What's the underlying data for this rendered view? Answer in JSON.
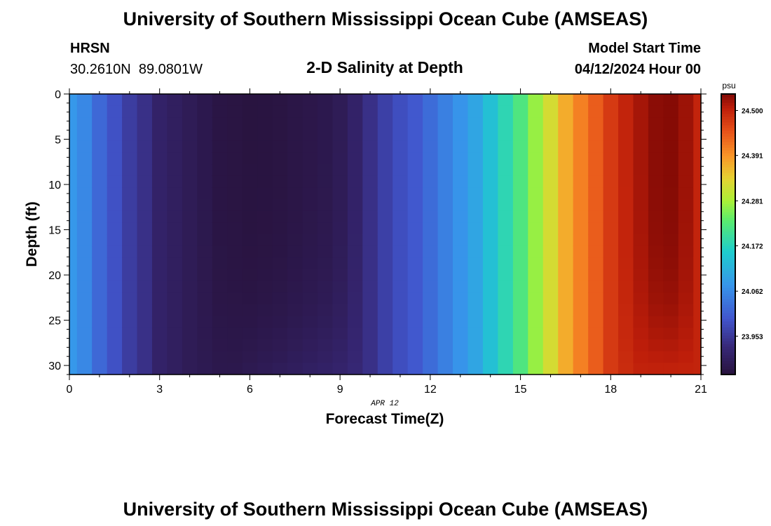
{
  "page": {
    "title": "University of Southern Mississippi Ocean Cube (AMSEAS)",
    "bottom_title": "University of Southern Mississippi Ocean Cube (AMSEAS)",
    "station_name": "HRSN",
    "station_coords": "30.2610N  89.0801W",
    "subtitle": "2-D Salinity at Depth",
    "model_start_label": "Model Start Time",
    "model_start_value": "04/12/2024 Hour 00",
    "date_label": "APR 12",
    "colorbar_unit": "psu"
  },
  "chart_data": {
    "type": "heatmap",
    "title": "2-D Salinity at Depth",
    "xlabel": "Forecast Time(Z)",
    "ylabel": "Depth (ft)",
    "xlim": [
      0,
      21
    ],
    "ylim": [
      31,
      0
    ],
    "x_ticks": [
      0,
      3,
      6,
      9,
      12,
      15,
      18,
      21
    ],
    "y_ticks": [
      0,
      5,
      10,
      15,
      20,
      25,
      30
    ],
    "x": [
      0,
      0.5,
      1,
      1.5,
      2,
      2.5,
      3,
      3.5,
      4,
      4.5,
      5,
      5.5,
      6,
      6.5,
      7,
      7.5,
      8,
      8.5,
      9,
      9.5,
      10,
      10.5,
      11,
      11.5,
      12,
      12.5,
      13,
      13.5,
      14,
      14.5,
      15,
      15.5,
      16,
      16.5,
      17,
      17.5,
      18,
      18.5,
      19,
      19.5,
      20,
      20.5,
      21
    ],
    "surface_salinity": [
      24.08,
      24.06,
      24.02,
      23.99,
      23.96,
      23.94,
      23.91,
      23.9,
      23.89,
      23.88,
      23.87,
      23.868,
      23.865,
      23.866,
      23.868,
      23.872,
      23.876,
      23.88,
      23.89,
      23.91,
      23.94,
      23.965,
      23.985,
      24.0,
      24.025,
      24.05,
      24.075,
      24.1,
      24.14,
      24.18,
      24.22,
      24.27,
      24.32,
      24.37,
      24.41,
      24.44,
      24.475,
      24.5,
      24.52,
      24.535,
      24.538,
      24.525,
      24.5
    ],
    "bottom_salinity": [
      24.08,
      24.06,
      24.02,
      23.99,
      23.96,
      23.94,
      23.91,
      23.9,
      23.89,
      23.885,
      23.88,
      23.88,
      23.885,
      23.89,
      23.895,
      23.9,
      23.905,
      23.91,
      23.915,
      23.925,
      23.94,
      23.965,
      23.985,
      24.0,
      24.025,
      24.05,
      24.075,
      24.1,
      24.14,
      24.18,
      24.22,
      24.27,
      24.32,
      24.37,
      24.41,
      24.44,
      24.475,
      24.49,
      24.5,
      24.5,
      24.5,
      24.5,
      24.5
    ],
    "colorbar": {
      "label": "psu",
      "vmin": 23.86,
      "vmax": 24.54,
      "ticks": [
        23.953,
        24.062,
        24.172,
        24.281,
        24.391,
        24.5
      ]
    }
  }
}
